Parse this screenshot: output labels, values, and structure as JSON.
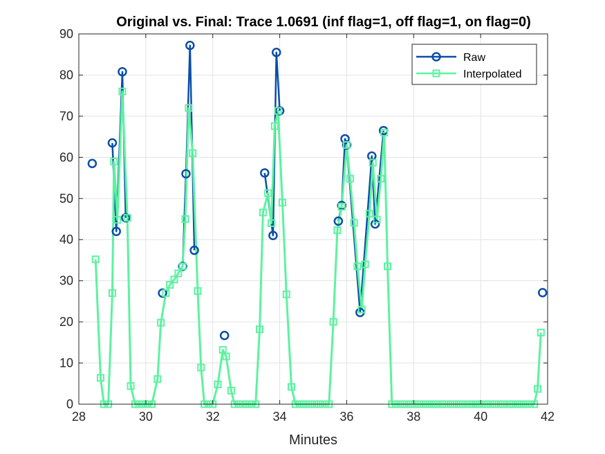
{
  "chart_data": {
    "type": "line",
    "title": "Original vs. Final: Trace 1.0691 (inf flag=1, off flag=1, on flag=0)",
    "xlabel": "Minutes",
    "ylabel": "",
    "xlim": [
      28,
      42
    ],
    "ylim": [
      0,
      90
    ],
    "xticks": [
      28,
      30,
      32,
      34,
      36,
      38,
      40,
      42
    ],
    "yticks": [
      0,
      10,
      20,
      30,
      40,
      50,
      60,
      70,
      80,
      90
    ],
    "grid": true,
    "legend_position": "top-right",
    "series": [
      {
        "name": "Raw",
        "color": "#0b4ea8",
        "marker": "circle",
        "line": "segments",
        "points": [
          [
            28.4,
            58.5
          ],
          [
            29.0,
            63.5
          ],
          [
            29.12,
            42.0
          ],
          [
            29.3,
            80.8
          ],
          [
            29.4,
            45.3
          ],
          [
            30.5,
            27.0
          ],
          [
            31.1,
            33.5
          ],
          [
            31.2,
            56.0
          ],
          [
            31.32,
            87.2
          ],
          [
            31.45,
            37.4
          ],
          [
            32.35,
            16.7
          ],
          [
            33.55,
            56.2
          ],
          [
            33.8,
            41.0
          ],
          [
            33.9,
            85.5
          ],
          [
            34.0,
            71.3
          ],
          [
            35.75,
            44.5
          ],
          [
            35.85,
            48.3
          ],
          [
            35.95,
            64.5
          ],
          [
            36.0,
            63.0
          ],
          [
            36.4,
            22.3
          ],
          [
            36.75,
            60.3
          ],
          [
            36.85,
            43.8
          ],
          [
            37.1,
            66.5
          ],
          [
            41.85,
            27.1
          ]
        ],
        "segments": [
          [
            1,
            4
          ],
          [
            6,
            9
          ],
          [
            11,
            14
          ],
          [
            15,
            22
          ]
        ]
      },
      {
        "name": "Interpolated",
        "color": "#5cf2a0",
        "marker": "square",
        "points": [
          [
            28.5,
            35.2
          ],
          [
            28.65,
            6.4
          ],
          [
            28.75,
            0
          ],
          [
            28.88,
            0
          ],
          [
            29.0,
            27.0
          ],
          [
            29.05,
            59.0
          ],
          [
            29.15,
            44.8
          ],
          [
            29.3,
            76.0
          ],
          [
            29.45,
            45.3
          ],
          [
            29.55,
            4.4
          ],
          [
            29.68,
            0
          ],
          [
            29.8,
            0
          ],
          [
            29.92,
            0
          ],
          [
            30.05,
            0
          ],
          [
            30.18,
            0
          ],
          [
            30.35,
            6.1
          ],
          [
            30.45,
            19.8
          ],
          [
            30.6,
            27.0
          ],
          [
            30.72,
            29.0
          ],
          [
            30.85,
            30.3
          ],
          [
            30.97,
            31.8
          ],
          [
            31.1,
            33.5
          ],
          [
            31.18,
            45.0
          ],
          [
            31.28,
            72.0
          ],
          [
            31.4,
            61.0
          ],
          [
            31.55,
            27.5
          ],
          [
            31.65,
            8.9
          ],
          [
            31.75,
            0
          ],
          [
            31.88,
            0
          ],
          [
            32.0,
            0
          ],
          [
            32.15,
            4.8
          ],
          [
            32.3,
            13.2
          ],
          [
            32.4,
            11.6
          ],
          [
            32.55,
            3.3
          ],
          [
            32.65,
            0
          ],
          [
            32.78,
            0
          ],
          [
            32.9,
            0
          ],
          [
            33.02,
            0
          ],
          [
            33.15,
            0
          ],
          [
            33.28,
            0
          ],
          [
            33.4,
            18.2
          ],
          [
            33.5,
            46.6
          ],
          [
            33.65,
            51.3
          ],
          [
            33.75,
            44.0
          ],
          [
            33.85,
            67.6
          ],
          [
            33.95,
            71.3
          ],
          [
            34.08,
            49.0
          ],
          [
            34.2,
            26.7
          ],
          [
            34.35,
            4.2
          ],
          [
            34.47,
            0
          ],
          [
            34.6,
            0
          ],
          [
            34.72,
            0
          ],
          [
            34.85,
            0
          ],
          [
            34.97,
            0
          ],
          [
            35.1,
            0
          ],
          [
            35.22,
            0
          ],
          [
            35.35,
            0
          ],
          [
            35.47,
            0
          ],
          [
            35.6,
            20.0
          ],
          [
            35.72,
            42.3
          ],
          [
            35.85,
            48.0
          ],
          [
            36.0,
            63.0
          ],
          [
            36.1,
            54.8
          ],
          [
            36.22,
            44.1
          ],
          [
            36.32,
            33.5
          ],
          [
            36.45,
            23.0
          ],
          [
            36.55,
            34.0
          ],
          [
            36.68,
            46.3
          ],
          [
            36.78,
            58.7
          ],
          [
            36.9,
            44.9
          ],
          [
            37.02,
            54.8
          ],
          [
            37.12,
            66.0
          ],
          [
            37.22,
            33.5
          ],
          [
            37.35,
            0
          ],
          [
            37.47,
            0
          ],
          [
            37.6,
            0
          ],
          [
            37.72,
            0
          ],
          [
            37.85,
            0
          ],
          [
            37.97,
            0
          ],
          [
            38.1,
            0
          ],
          [
            38.22,
            0
          ],
          [
            38.35,
            0
          ],
          [
            38.47,
            0
          ],
          [
            38.6,
            0
          ],
          [
            38.72,
            0
          ],
          [
            38.85,
            0
          ],
          [
            38.97,
            0
          ],
          [
            39.1,
            0
          ],
          [
            39.22,
            0
          ],
          [
            39.35,
            0
          ],
          [
            39.47,
            0
          ],
          [
            39.6,
            0
          ],
          [
            39.72,
            0
          ],
          [
            39.85,
            0
          ],
          [
            39.97,
            0
          ],
          [
            40.1,
            0
          ],
          [
            40.22,
            0
          ],
          [
            40.35,
            0
          ],
          [
            40.47,
            0
          ],
          [
            40.6,
            0
          ],
          [
            40.72,
            0
          ],
          [
            40.85,
            0
          ],
          [
            40.97,
            0
          ],
          [
            41.1,
            0
          ],
          [
            41.22,
            0
          ],
          [
            41.35,
            0
          ],
          [
            41.47,
            0
          ],
          [
            41.6,
            0
          ],
          [
            41.7,
            3.7
          ],
          [
            41.8,
            17.4
          ]
        ]
      }
    ]
  }
}
